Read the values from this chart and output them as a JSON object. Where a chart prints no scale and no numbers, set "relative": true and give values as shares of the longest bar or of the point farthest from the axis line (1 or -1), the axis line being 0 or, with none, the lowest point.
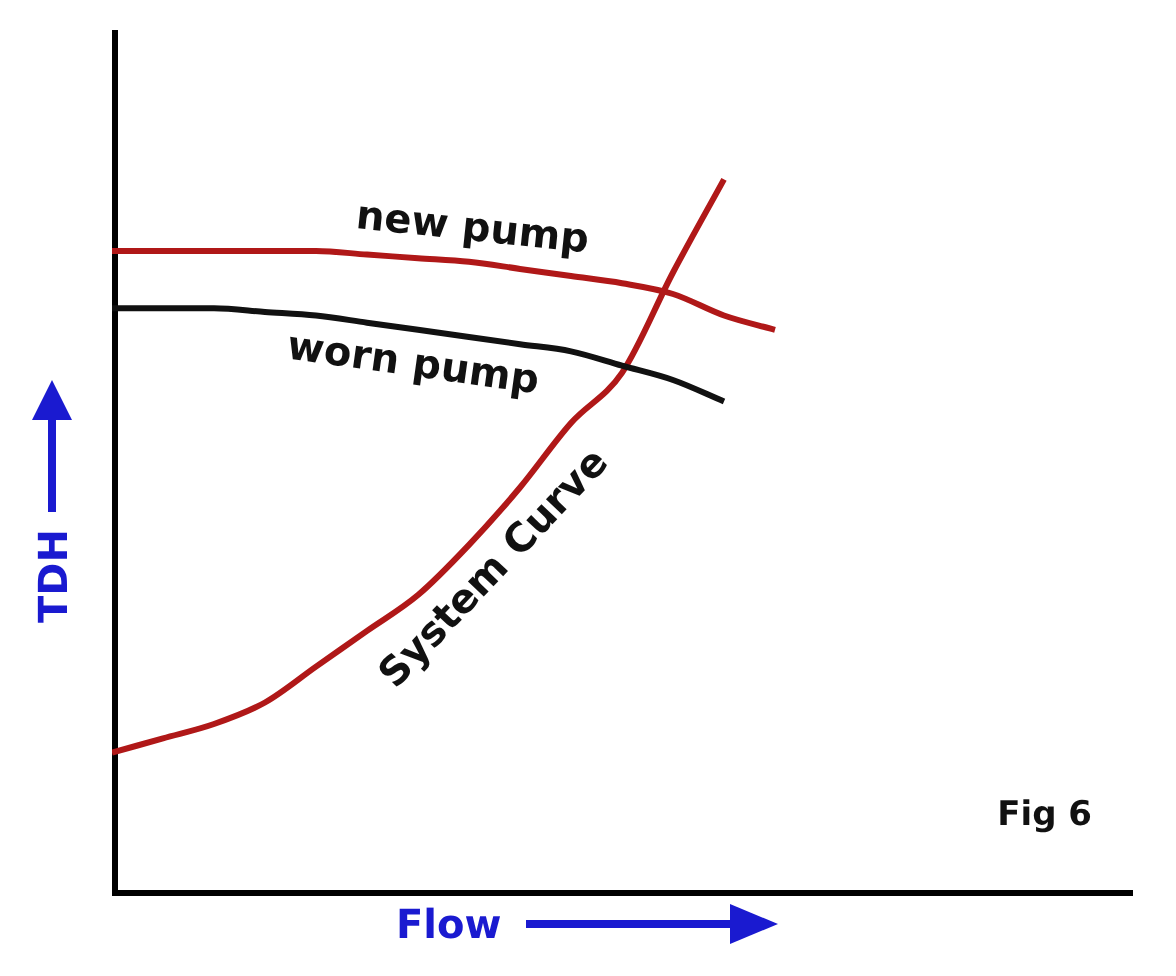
{
  "chart_data": {
    "type": "line",
    "xlabel": "Flow",
    "ylabel": "TDH",
    "relative": true,
    "categories": [
      null,
      null,
      null,
      null,
      null,
      null,
      null,
      null,
      null,
      null,
      null,
      null,
      null,
      null,
      null,
      null,
      null,
      null,
      null,
      null,
      null
    ],
    "series": [
      {
        "name": "new pump",
        "color": "#b01818",
        "values": [
          0.9,
          0.9,
          0.9,
          0.9,
          0.9,
          0.895,
          0.89,
          0.885,
          0.875,
          0.865,
          0.855,
          0.84,
          0.81,
          0.79,
          null,
          null,
          null,
          null,
          null,
          null,
          null
        ]
      },
      {
        "name": "worn pump",
        "color": "#111111",
        "values": [
          0.82,
          0.82,
          0.82,
          0.815,
          0.81,
          0.8,
          0.79,
          0.78,
          0.77,
          0.76,
          0.74,
          0.72,
          0.69,
          null,
          null,
          null,
          null,
          null,
          null,
          null,
          null
        ]
      },
      {
        "name": "System Curve",
        "color": "#b01818",
        "values": [
          0.2,
          0.22,
          0.24,
          0.27,
          0.32,
          0.37,
          0.42,
          0.49,
          0.57,
          0.66,
          0.73,
          0.87,
          1.0,
          null,
          null,
          null,
          null,
          null,
          null,
          null,
          null
        ]
      }
    ],
    "annotations": [
      "Fig 6"
    ]
  }
}
